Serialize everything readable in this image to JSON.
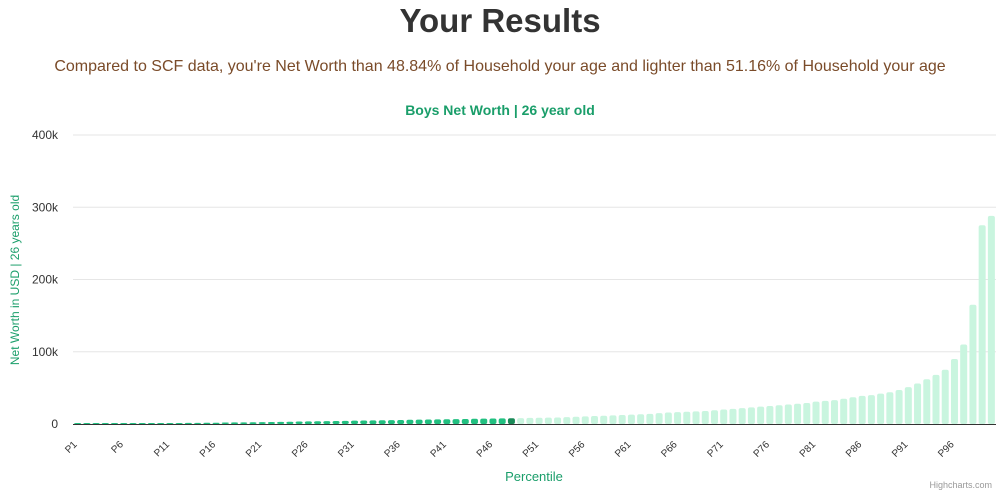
{
  "page": {
    "title": "Your Results",
    "subtitle": "Compared to SCF data, you're Net Worth than 48.84% of Household your age and lighter than 51.16% of Household your age",
    "credit": "Highcharts.com"
  },
  "colors": {
    "highlight_bar": "#21c080",
    "current_bar": "#1a8a58",
    "other_bar": "#c9f5df",
    "accent_text": "#1a9e6a",
    "subtitle_text": "#7a4b29",
    "grid": "#e6e6e6"
  },
  "chart_data": {
    "type": "bar",
    "title": "Boys Net Worth | 26 year old",
    "xlabel": "Percentile",
    "ylabel": "Net Worth in USD | 26 years old",
    "ylim": [
      0,
      400000
    ],
    "yticks": [
      0,
      100000,
      200000,
      300000,
      400000
    ],
    "ytick_labels": [
      "0",
      "100k",
      "200k",
      "300k",
      "400k"
    ],
    "grid": true,
    "current_percentile": 48,
    "categories": [
      "P1",
      "P2",
      "P3",
      "P4",
      "P5",
      "P6",
      "P7",
      "P8",
      "P9",
      "P10",
      "P11",
      "P12",
      "P13",
      "P14",
      "P15",
      "P16",
      "P17",
      "P18",
      "P19",
      "P20",
      "P21",
      "P22",
      "P23",
      "P24",
      "P25",
      "P26",
      "P27",
      "P28",
      "P29",
      "P30",
      "P31",
      "P32",
      "P33",
      "P34",
      "P35",
      "P36",
      "P37",
      "P38",
      "P39",
      "P40",
      "P41",
      "P42",
      "P43",
      "P44",
      "P45",
      "P46",
      "P47",
      "P48",
      "P49",
      "P50",
      "P51",
      "P52",
      "P53",
      "P54",
      "P55",
      "P56",
      "P57",
      "P58",
      "P59",
      "P60",
      "P61",
      "P62",
      "P63",
      "P64",
      "P65",
      "P66",
      "P67",
      "P68",
      "P69",
      "P70",
      "P71",
      "P72",
      "P73",
      "P74",
      "P75",
      "P76",
      "P77",
      "P78",
      "P79",
      "P80",
      "P81",
      "P82",
      "P83",
      "P84",
      "P85",
      "P86",
      "P87",
      "P88",
      "P89",
      "P90",
      "P91",
      "P92",
      "P93",
      "P94",
      "P95",
      "P96",
      "P97",
      "P98",
      "P99",
      "P100"
    ],
    "tick_labels": [
      "P1",
      "P6",
      "P11",
      "P16",
      "P21",
      "P26",
      "P31",
      "P36",
      "P41",
      "P46",
      "P51",
      "P56",
      "P61",
      "P66",
      "P71",
      "P76",
      "P81",
      "P86",
      "P91",
      "P96"
    ],
    "values": [
      0,
      0,
      0,
      0,
      0,
      0,
      500,
      500,
      800,
      1000,
      1200,
      1300,
      1500,
      1600,
      1700,
      1800,
      2000,
      2200,
      2300,
      2500,
      2600,
      2800,
      3000,
      3200,
      3400,
      3600,
      3800,
      4000,
      4200,
      4400,
      4600,
      4800,
      5000,
      5200,
      5400,
      5600,
      5800,
      6000,
      6200,
      6400,
      6600,
      6800,
      7000,
      7200,
      7400,
      7600,
      7800,
      8000,
      8200,
      8400,
      8600,
      8800,
      9000,
      9500,
      10000,
      10500,
      11000,
      11500,
      12000,
      12500,
      13000,
      13500,
      14000,
      15000,
      16000,
      16500,
      17000,
      17500,
      18000,
      19000,
      20000,
      21000,
      22000,
      23000,
      24000,
      25000,
      26000,
      27000,
      28000,
      29000,
      31000,
      32000,
      33000,
      35000,
      37000,
      39000,
      40000,
      42000,
      44000,
      47000,
      51000,
      56000,
      62000,
      68000,
      75000,
      90000,
      110000,
      165000,
      275000,
      288000
    ]
  }
}
